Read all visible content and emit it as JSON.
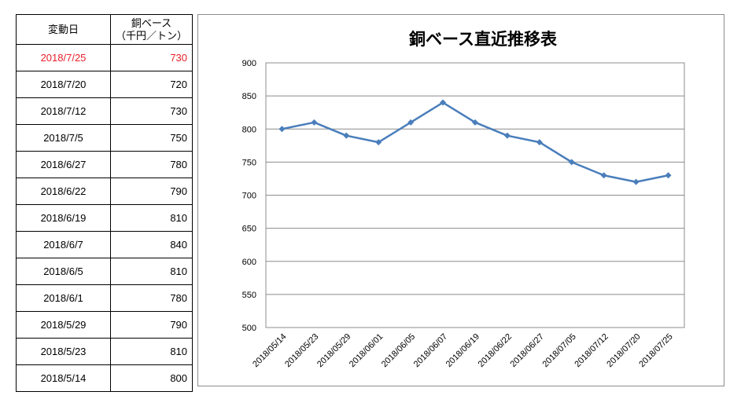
{
  "table": {
    "header": {
      "date": "変動日",
      "base_line1": "銅ベース",
      "base_line2": "（千円／トン）"
    },
    "rows": [
      {
        "date": "2018/7/25",
        "value": "730",
        "highlight": true
      },
      {
        "date": "2018/7/20",
        "value": "720"
      },
      {
        "date": "2018/7/12",
        "value": "730"
      },
      {
        "date": "2018/7/5",
        "value": "750"
      },
      {
        "date": "2018/6/27",
        "value": "780"
      },
      {
        "date": "2018/6/22",
        "value": "790"
      },
      {
        "date": "2018/6/19",
        "value": "810"
      },
      {
        "date": "2018/6/7",
        "value": "840"
      },
      {
        "date": "2018/6/5",
        "value": "810"
      },
      {
        "date": "2018/6/1",
        "value": "780"
      },
      {
        "date": "2018/5/29",
        "value": "790"
      },
      {
        "date": "2018/5/23",
        "value": "810"
      },
      {
        "date": "2018/5/14",
        "value": "800"
      }
    ],
    "highlight_color": "#e8202a"
  },
  "chart_data": {
    "type": "line",
    "title": "銅ベース直近推移表",
    "xlabel": "",
    "ylabel": "",
    "categories": [
      "2018/05/14",
      "2018/05/23",
      "2018/05/29",
      "2018/06/01",
      "2018/06/05",
      "2018/06/07",
      "2018/06/19",
      "2018/06/22",
      "2018/06/27",
      "2018/07/05",
      "2018/07/12",
      "2018/07/20",
      "2018/07/25"
    ],
    "series": [
      {
        "values": [
          800,
          810,
          790,
          780,
          810,
          840,
          810,
          790,
          780,
          750,
          730,
          720,
          730
        ],
        "color": "#4a7ebb"
      }
    ],
    "ylim": [
      500,
      900
    ],
    "yticks": [
      500,
      550,
      600,
      650,
      700,
      750,
      800,
      850,
      900
    ],
    "grid": true,
    "legend": "none",
    "marker": "diamond"
  }
}
